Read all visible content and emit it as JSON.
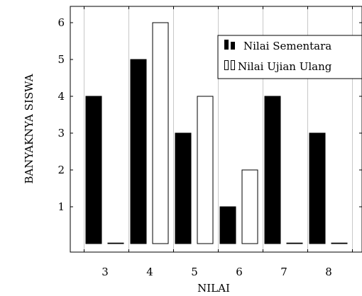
{
  "chart_data": {
    "type": "bar",
    "xlabel": "NILAI",
    "ylabel": "BANYAKNYA SISWA",
    "categories": [
      "3",
      "4",
      "5",
      "6",
      "7",
      "8"
    ],
    "ylim": [
      0,
      6
    ],
    "yticks": [
      "1",
      "2",
      "3",
      "4",
      "5",
      "6"
    ],
    "grid": "vertical",
    "legend_position": "top-right",
    "series": [
      {
        "name": "Nilai Sementara",
        "values": [
          4,
          5,
          3,
          1,
          4,
          3
        ],
        "fill": "#000000",
        "stroke": "#000000"
      },
      {
        "name": "Nilai Ujian Ulang",
        "values": [
          0,
          6,
          4,
          2,
          0,
          0
        ],
        "fill": "#ffffff",
        "stroke": "#000000"
      }
    ]
  }
}
